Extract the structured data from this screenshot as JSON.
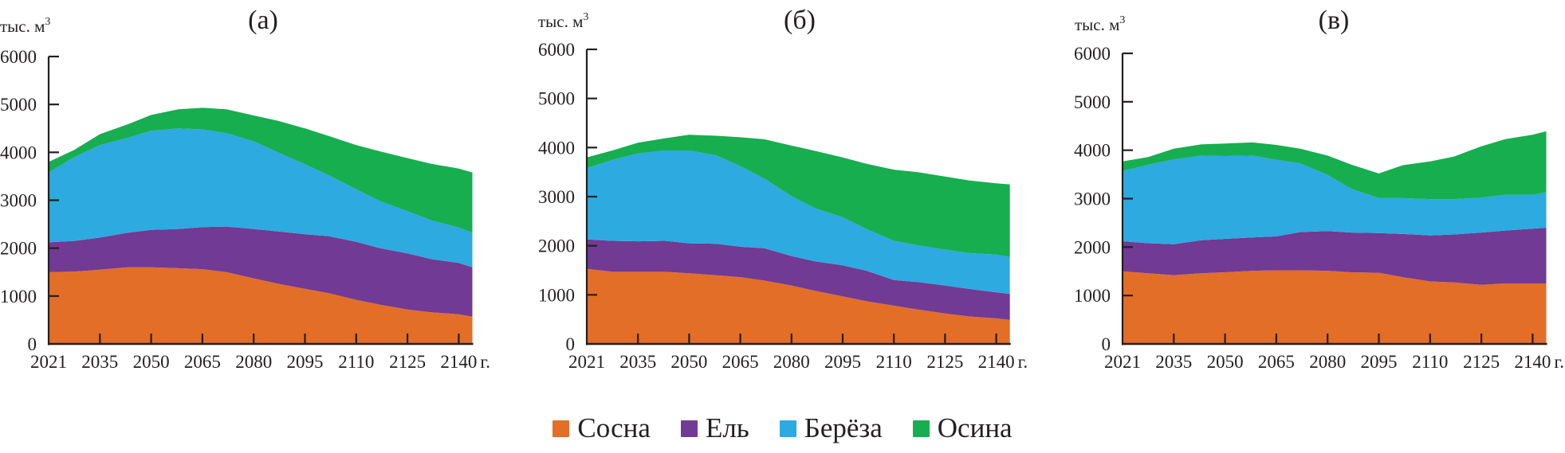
{
  "legend": [
    {
      "label": "Сосна",
      "color": "#E36E28"
    },
    {
      "label": "Ель",
      "color": "#713A94"
    },
    {
      "label": "Берёза",
      "color": "#2DAAE0"
    },
    {
      "label": "Осина",
      "color": "#17AE4F"
    }
  ],
  "chart_data": [
    {
      "type": "area",
      "stacked": true,
      "title": "(а)",
      "ylabel": "тыс. м3",
      "xlabel": "г.",
      "ylim": [
        0,
        6000
      ],
      "yticks": [
        "0",
        "1000",
        "2000",
        "3000",
        "4000",
        "5000",
        "6000"
      ],
      "xticks": [
        "2021",
        "2035",
        "2050",
        "2065",
        "2080",
        "2095",
        "2110",
        "2125",
        "2140"
      ],
      "xticks_suffix": "г.",
      "x": [
        2021,
        2028,
        2035,
        2043,
        2050,
        2058,
        2065,
        2072,
        2080,
        2087,
        2095,
        2102,
        2110,
        2117,
        2125,
        2132,
        2140,
        2144
      ],
      "series": [
        {
          "name": "Сосна",
          "values": [
            1500,
            1510,
            1550,
            1600,
            1600,
            1580,
            1560,
            1500,
            1370,
            1260,
            1150,
            1060,
            920,
            820,
            720,
            660,
            620,
            570
          ]
        },
        {
          "name": "Ель",
          "values": [
            620,
            640,
            670,
            720,
            780,
            820,
            880,
            950,
            1030,
            1090,
            1140,
            1190,
            1210,
            1180,
            1170,
            1110,
            1070,
            1030
          ]
        },
        {
          "name": "Берёза",
          "values": [
            1460,
            1750,
            1930,
            1980,
            2070,
            2100,
            2040,
            1950,
            1830,
            1650,
            1460,
            1270,
            1100,
            980,
            880,
            810,
            740,
            720
          ]
        },
        {
          "name": "Осина",
          "values": [
            220,
            150,
            230,
            280,
            330,
            400,
            450,
            500,
            540,
            660,
            750,
            820,
            920,
            1040,
            1110,
            1180,
            1230,
            1260
          ]
        }
      ]
    },
    {
      "type": "area",
      "stacked": true,
      "title": "(б)",
      "ylabel": "тыс. м3",
      "xlabel": "г.",
      "ylim": [
        0,
        6000
      ],
      "yticks": [
        "0",
        "1000",
        "2000",
        "3000",
        "4000",
        "5000",
        "6000"
      ],
      "xticks": [
        "2021",
        "2035",
        "2050",
        "2065",
        "2080",
        "2095",
        "2110",
        "2125",
        "2140"
      ],
      "xticks_suffix": "г.",
      "x": [
        2021,
        2028,
        2035,
        2043,
        2050,
        2058,
        2065,
        2072,
        2080,
        2087,
        2095,
        2102,
        2110,
        2117,
        2125,
        2132,
        2140,
        2144
      ],
      "series": [
        {
          "name": "Сосна",
          "values": [
            1530,
            1470,
            1470,
            1470,
            1440,
            1400,
            1360,
            1290,
            1190,
            1080,
            970,
            870,
            780,
            700,
            620,
            560,
            520,
            490
          ]
        },
        {
          "name": "Ель",
          "values": [
            600,
            630,
            620,
            630,
            610,
            640,
            620,
            660,
            600,
            600,
            630,
            620,
            520,
            560,
            570,
            560,
            530,
            530
          ]
        },
        {
          "name": "Берёза",
          "values": [
            1450,
            1650,
            1790,
            1840,
            1890,
            1800,
            1640,
            1420,
            1220,
            1080,
            980,
            850,
            800,
            750,
            730,
            730,
            770,
            750
          ]
        },
        {
          "name": "Осина",
          "values": [
            220,
            190,
            220,
            250,
            320,
            400,
            590,
            800,
            1030,
            1170,
            1220,
            1330,
            1450,
            1490,
            1490,
            1480,
            1450,
            1480
          ]
        }
      ]
    },
    {
      "type": "area",
      "stacked": true,
      "title": "(в)",
      "ylabel": "тыс. м3",
      "xlabel": "г.",
      "ylim": [
        0,
        6000
      ],
      "yticks": [
        "0",
        "1000",
        "2000",
        "3000",
        "4000",
        "5000",
        "6000"
      ],
      "xticks": [
        "2021",
        "2035",
        "2050",
        "2065",
        "2080",
        "2095",
        "2110",
        "2125",
        "2140"
      ],
      "xticks_suffix": "г.",
      "x": [
        2021,
        2028,
        2035,
        2043,
        2050,
        2058,
        2065,
        2072,
        2080,
        2087,
        2095,
        2102,
        2110,
        2117,
        2125,
        2132,
        2140,
        2144
      ],
      "series": [
        {
          "name": "Сосна",
          "values": [
            1500,
            1460,
            1420,
            1460,
            1480,
            1510,
            1520,
            1520,
            1510,
            1480,
            1470,
            1380,
            1290,
            1270,
            1220,
            1250,
            1250,
            1250
          ]
        },
        {
          "name": "Ель",
          "values": [
            620,
            620,
            640,
            680,
            690,
            690,
            700,
            790,
            820,
            820,
            820,
            890,
            950,
            990,
            1080,
            1090,
            1130,
            1150
          ]
        },
        {
          "name": "Берёза",
          "values": [
            1450,
            1620,
            1750,
            1750,
            1710,
            1690,
            1580,
            1420,
            1160,
            900,
            720,
            740,
            750,
            730,
            720,
            740,
            700,
            730
          ]
        },
        {
          "name": "Осина",
          "values": [
            200,
            160,
            220,
            230,
            260,
            270,
            310,
            300,
            400,
            500,
            510,
            680,
            780,
            880,
            1060,
            1150,
            1240,
            1260
          ]
        }
      ]
    }
  ]
}
